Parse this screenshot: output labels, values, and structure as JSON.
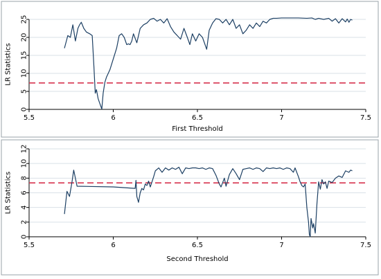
{
  "chart_data": [
    {
      "type": "line",
      "title": "",
      "xlabel": "First Threshold",
      "ylabel": "LR Statistics",
      "xlim": [
        5.5,
        7.5
      ],
      "ylim": [
        0,
        25
      ],
      "x_ticks": [
        5.5,
        6,
        6.5,
        7,
        7.5
      ],
      "x_tick_labels": [
        "5.5",
        "6",
        "6.5",
        "7",
        "7.5"
      ],
      "y_ticks": [
        0,
        5,
        10,
        15,
        20,
        25
      ],
      "y_tick_labels": [
        "0",
        "5",
        "10",
        "15",
        "20",
        "25"
      ],
      "grid": true,
      "colors": {
        "line": "#1c3f63",
        "critical": "#d6334e",
        "grid": "#d9e1e7",
        "frame": "#9aa3a8"
      },
      "critical_value": 7.35,
      "series": [
        {
          "values": [
            [
              5.71,
              17.0
            ],
            [
              5.73,
              20.5
            ],
            [
              5.745,
              20.0
            ],
            [
              5.76,
              23.5
            ],
            [
              5.775,
              19.0
            ],
            [
              5.79,
              22.5
            ],
            [
              5.8,
              23.5
            ],
            [
              5.81,
              24.2
            ],
            [
              5.825,
              22.5
            ],
            [
              5.84,
              21.5
            ],
            [
              5.86,
              21.0
            ],
            [
              5.875,
              20.5
            ],
            [
              5.885,
              12.0
            ],
            [
              5.893,
              4.5
            ],
            [
              5.9,
              5.5
            ],
            [
              5.91,
              3.0
            ],
            [
              5.925,
              1.0
            ],
            [
              5.932,
              0.1
            ],
            [
              5.94,
              4.5
            ],
            [
              5.95,
              7.5
            ],
            [
              5.96,
              9.0
            ],
            [
              5.98,
              11.0
            ],
            [
              6.0,
              14.0
            ],
            [
              6.02,
              17.0
            ],
            [
              6.035,
              20.5
            ],
            [
              6.05,
              21.0
            ],
            [
              6.065,
              20.0
            ],
            [
              6.08,
              18.0
            ],
            [
              6.09,
              18.2
            ],
            [
              6.1,
              18.0
            ],
            [
              6.11,
              19.0
            ],
            [
              6.12,
              21.0
            ],
            [
              6.14,
              18.5
            ],
            [
              6.16,
              22.5
            ],
            [
              6.18,
              23.5
            ],
            [
              6.2,
              24.0
            ],
            [
              6.22,
              25.0
            ],
            [
              6.24,
              25.3
            ],
            [
              6.26,
              24.5
            ],
            [
              6.28,
              25.0
            ],
            [
              6.3,
              24.0
            ],
            [
              6.32,
              25.2
            ],
            [
              6.34,
              23.0
            ],
            [
              6.36,
              21.5
            ],
            [
              6.38,
              20.5
            ],
            [
              6.4,
              19.5
            ],
            [
              6.42,
              22.5
            ],
            [
              6.44,
              20.0
            ],
            [
              6.455,
              18.0
            ],
            [
              6.47,
              21.0
            ],
            [
              6.49,
              19.0
            ],
            [
              6.51,
              21.0
            ],
            [
              6.53,
              20.0
            ],
            [
              6.555,
              16.7
            ],
            [
              6.57,
              22.0
            ],
            [
              6.59,
              24.0
            ],
            [
              6.61,
              25.2
            ],
            [
              6.63,
              25.0
            ],
            [
              6.65,
              24.0
            ],
            [
              6.67,
              25.0
            ],
            [
              6.69,
              23.5
            ],
            [
              6.71,
              25.0
            ],
            [
              6.73,
              22.5
            ],
            [
              6.75,
              23.5
            ],
            [
              6.77,
              21.0
            ],
            [
              6.79,
              22.0
            ],
            [
              6.81,
              23.5
            ],
            [
              6.83,
              22.5
            ],
            [
              6.85,
              24.0
            ],
            [
              6.87,
              23.0
            ],
            [
              6.89,
              24.5
            ],
            [
              6.91,
              24.0
            ],
            [
              6.93,
              25.0
            ],
            [
              6.95,
              25.3
            ],
            [
              6.97,
              25.3
            ],
            [
              7.0,
              25.4
            ],
            [
              7.05,
              25.4
            ],
            [
              7.1,
              25.4
            ],
            [
              7.15,
              25.3
            ],
            [
              7.18,
              25.4
            ],
            [
              7.2,
              25.0
            ],
            [
              7.22,
              25.3
            ],
            [
              7.25,
              25.0
            ],
            [
              7.28,
              25.3
            ],
            [
              7.3,
              24.5
            ],
            [
              7.32,
              25.2
            ],
            [
              7.34,
              24.0
            ],
            [
              7.36,
              25.2
            ],
            [
              7.38,
              24.3
            ],
            [
              7.39,
              25.1
            ],
            [
              7.4,
              24.2
            ],
            [
              7.41,
              25.0
            ],
            [
              7.42,
              24.8
            ]
          ]
        }
      ]
    },
    {
      "type": "line",
      "title": "",
      "xlabel": "Second Threshold",
      "ylabel": "LR Statistics",
      "xlim": [
        5.5,
        7.5
      ],
      "ylim": [
        0,
        12
      ],
      "x_ticks": [
        5.5,
        6,
        6.5,
        7,
        7.5
      ],
      "x_tick_labels": [
        "5.5",
        "6",
        "6.5",
        "7",
        "7.5"
      ],
      "y_ticks": [
        0,
        2,
        4,
        6,
        8,
        10,
        12
      ],
      "y_tick_labels": [
        "0",
        "2",
        "4",
        "6",
        "8",
        "10",
        "12"
      ],
      "grid": true,
      "colors": {
        "line": "#1c3f63",
        "critical": "#d6334e",
        "grid": "#d9e1e7",
        "frame": "#9aa3a8"
      },
      "critical_value": 7.35,
      "series": [
        {
          "values": [
            [
              5.71,
              3.1
            ],
            [
              5.725,
              6.2
            ],
            [
              5.74,
              5.5
            ],
            [
              5.755,
              7.5
            ],
            [
              5.765,
              9.1
            ],
            [
              5.775,
              8.0
            ],
            [
              5.785,
              6.9
            ],
            [
              6.0,
              6.8
            ],
            [
              6.13,
              6.6
            ],
            [
              6.135,
              7.7
            ],
            [
              6.14,
              5.5
            ],
            [
              6.15,
              4.7
            ],
            [
              6.16,
              6.0
            ],
            [
              6.17,
              6.6
            ],
            [
              6.18,
              6.4
            ],
            [
              6.19,
              7.2
            ],
            [
              6.2,
              7.0
            ],
            [
              6.21,
              7.6
            ],
            [
              6.22,
              6.8
            ],
            [
              6.23,
              7.5
            ],
            [
              6.24,
              8.2
            ],
            [
              6.25,
              9.0
            ],
            [
              6.27,
              9.4
            ],
            [
              6.29,
              8.8
            ],
            [
              6.31,
              9.4
            ],
            [
              6.33,
              9.1
            ],
            [
              6.35,
              9.4
            ],
            [
              6.37,
              9.2
            ],
            [
              6.39,
              9.5
            ],
            [
              6.41,
              8.6
            ],
            [
              6.43,
              9.4
            ],
            [
              6.45,
              9.3
            ],
            [
              6.47,
              9.4
            ],
            [
              6.49,
              9.4
            ],
            [
              6.51,
              9.3
            ],
            [
              6.53,
              9.4
            ],
            [
              6.55,
              9.2
            ],
            [
              6.57,
              9.4
            ],
            [
              6.59,
              9.3
            ],
            [
              6.61,
              8.4
            ],
            [
              6.62,
              7.8
            ],
            [
              6.63,
              7.2
            ],
            [
              6.64,
              6.8
            ],
            [
              6.65,
              7.4
            ],
            [
              6.66,
              8.0
            ],
            [
              6.67,
              6.9
            ],
            [
              6.69,
              8.5
            ],
            [
              6.71,
              9.3
            ],
            [
              6.73,
              8.6
            ],
            [
              6.75,
              7.8
            ],
            [
              6.77,
              9.2
            ],
            [
              6.79,
              9.3
            ],
            [
              6.81,
              9.4
            ],
            [
              6.83,
              9.2
            ],
            [
              6.85,
              9.4
            ],
            [
              6.87,
              9.3
            ],
            [
              6.89,
              8.9
            ],
            [
              6.91,
              9.4
            ],
            [
              6.93,
              9.3
            ],
            [
              6.95,
              9.4
            ],
            [
              6.97,
              9.3
            ],
            [
              6.99,
              9.4
            ],
            [
              7.01,
              9.2
            ],
            [
              7.03,
              9.4
            ],
            [
              7.05,
              9.3
            ],
            [
              7.07,
              8.8
            ],
            [
              7.08,
              9.4
            ],
            [
              7.1,
              8.2
            ],
            [
              7.11,
              7.5
            ],
            [
              7.12,
              7.0
            ],
            [
              7.13,
              6.8
            ],
            [
              7.14,
              7.2
            ],
            [
              7.15,
              4.0
            ],
            [
              7.16,
              2.0
            ],
            [
              7.165,
              0.3
            ],
            [
              7.17,
              0.0
            ],
            [
              7.175,
              2.5
            ],
            [
              7.185,
              1.2
            ],
            [
              7.19,
              1.8
            ],
            [
              7.2,
              0.5
            ],
            [
              7.21,
              4.5
            ],
            [
              7.22,
              7.5
            ],
            [
              7.23,
              6.5
            ],
            [
              7.24,
              7.8
            ],
            [
              7.25,
              7.2
            ],
            [
              7.26,
              7.5
            ],
            [
              7.27,
              6.6
            ],
            [
              7.28,
              7.6
            ],
            [
              7.3,
              7.4
            ],
            [
              7.32,
              8.0
            ],
            [
              7.34,
              8.3
            ],
            [
              7.36,
              8.1
            ],
            [
              7.38,
              9.0
            ],
            [
              7.4,
              8.8
            ],
            [
              7.41,
              9.1
            ],
            [
              7.42,
              9.0
            ]
          ]
        }
      ]
    }
  ]
}
